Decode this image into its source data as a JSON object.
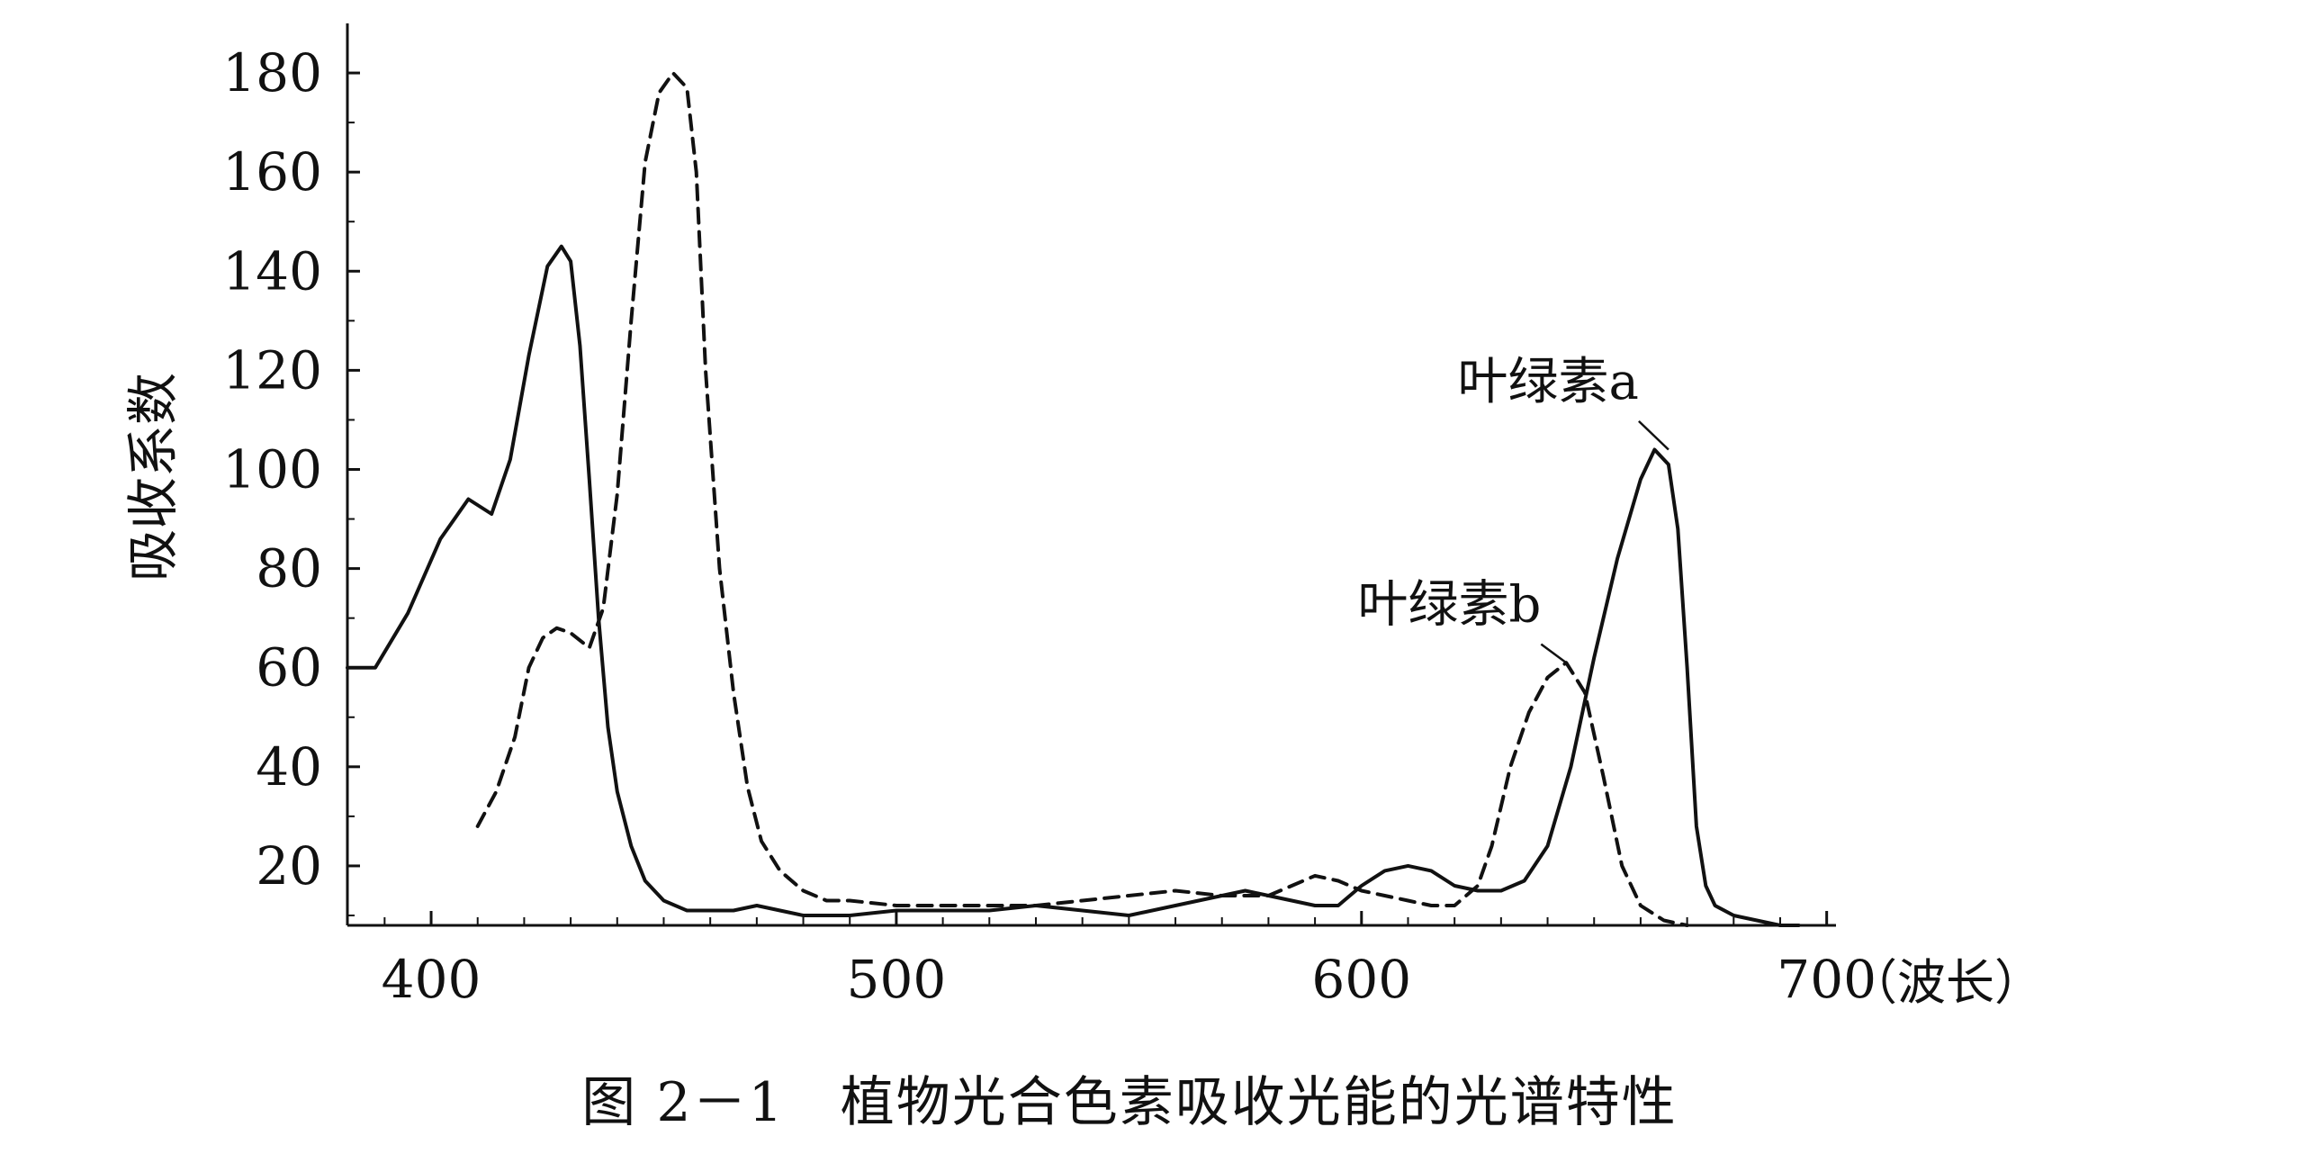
{
  "chart_data": {
    "type": "line",
    "title": "",
    "caption": "图 2－1　植物光合色素吸收光能的光谱特性",
    "xlabel": "（波长）",
    "ylabel": "吸收系数",
    "xlim": [
      382,
      702
    ],
    "ylim": [
      8,
      190
    ],
    "x_ticks": [
      400,
      500,
      600,
      700
    ],
    "x_tick_labels": [
      "400",
      "500",
      "600",
      "700"
    ],
    "y_ticks": [
      20,
      40,
      60,
      80,
      100,
      120,
      140,
      160,
      180
    ],
    "y_tick_labels": [
      "20",
      "40",
      "60",
      "80",
      "100",
      "120",
      "140",
      "160",
      "180"
    ],
    "grid": false,
    "legend": "none",
    "series": [
      {
        "name": "叶绿素a",
        "style": "solid",
        "color": "#111111",
        "x": [
          382,
          388,
          395,
          402,
          408,
          413,
          417,
          421,
          425,
          428,
          430,
          432,
          434,
          436,
          438,
          440,
          443,
          446,
          450,
          455,
          460,
          465,
          470,
          475,
          480,
          490,
          500,
          510,
          520,
          530,
          540,
          550,
          560,
          570,
          575,
          580,
          585,
          590,
          595,
          600,
          605,
          610,
          615,
          620,
          625,
          630,
          635,
          640,
          645,
          650,
          655,
          660,
          663,
          666,
          668,
          670,
          672,
          674,
          676,
          680,
          685,
          690,
          694
        ],
        "y": [
          60,
          60,
          71,
          86,
          94,
          91,
          102,
          123,
          141,
          145,
          142,
          125,
          98,
          70,
          48,
          35,
          24,
          17,
          13,
          11,
          11,
          11,
          12,
          11,
          10,
          10,
          11,
          11,
          11,
          12,
          11,
          10,
          12,
          14,
          15,
          14,
          13,
          12,
          12,
          16,
          19,
          20,
          19,
          16,
          15,
          15,
          17,
          24,
          40,
          62,
          82,
          98,
          104,
          101,
          88,
          60,
          28,
          16,
          12,
          10,
          9,
          8,
          8
        ]
      },
      {
        "name": "叶绿素b",
        "style": "dashed",
        "color": "#111111",
        "x": [
          410,
          414,
          418,
          421,
          424,
          427,
          430,
          434,
          437,
          440,
          443,
          446,
          449,
          452,
          455,
          457,
          459,
          462,
          465,
          468,
          471,
          475,
          480,
          485,
          490,
          500,
          510,
          520,
          530,
          540,
          550,
          560,
          570,
          580,
          585,
          590,
          595,
          600,
          605,
          610,
          615,
          620,
          625,
          628,
          632,
          636,
          640,
          644,
          648,
          652,
          656,
          660,
          665,
          670
        ],
        "y": [
          28,
          35,
          46,
          60,
          66,
          68,
          67,
          64,
          72,
          95,
          130,
          162,
          176,
          180,
          177,
          160,
          120,
          80,
          55,
          36,
          25,
          19,
          15,
          13,
          13,
          12,
          12,
          12,
          12,
          13,
          14,
          15,
          14,
          14,
          16,
          18,
          17,
          15,
          14,
          13,
          12,
          12,
          16,
          24,
          40,
          51,
          58,
          61,
          55,
          38,
          20,
          12,
          9,
          8
        ]
      }
    ],
    "annotations": [
      {
        "text": "叶绿素a",
        "series": "叶绿素a",
        "point_x": 666,
        "point_y": 104,
        "label_x": 648,
        "label_y": 117
      },
      {
        "text": "叶绿素b",
        "series": "叶绿素b",
        "point_x": 644,
        "point_y": 61,
        "label_x": 627,
        "label_y": 72
      }
    ]
  }
}
